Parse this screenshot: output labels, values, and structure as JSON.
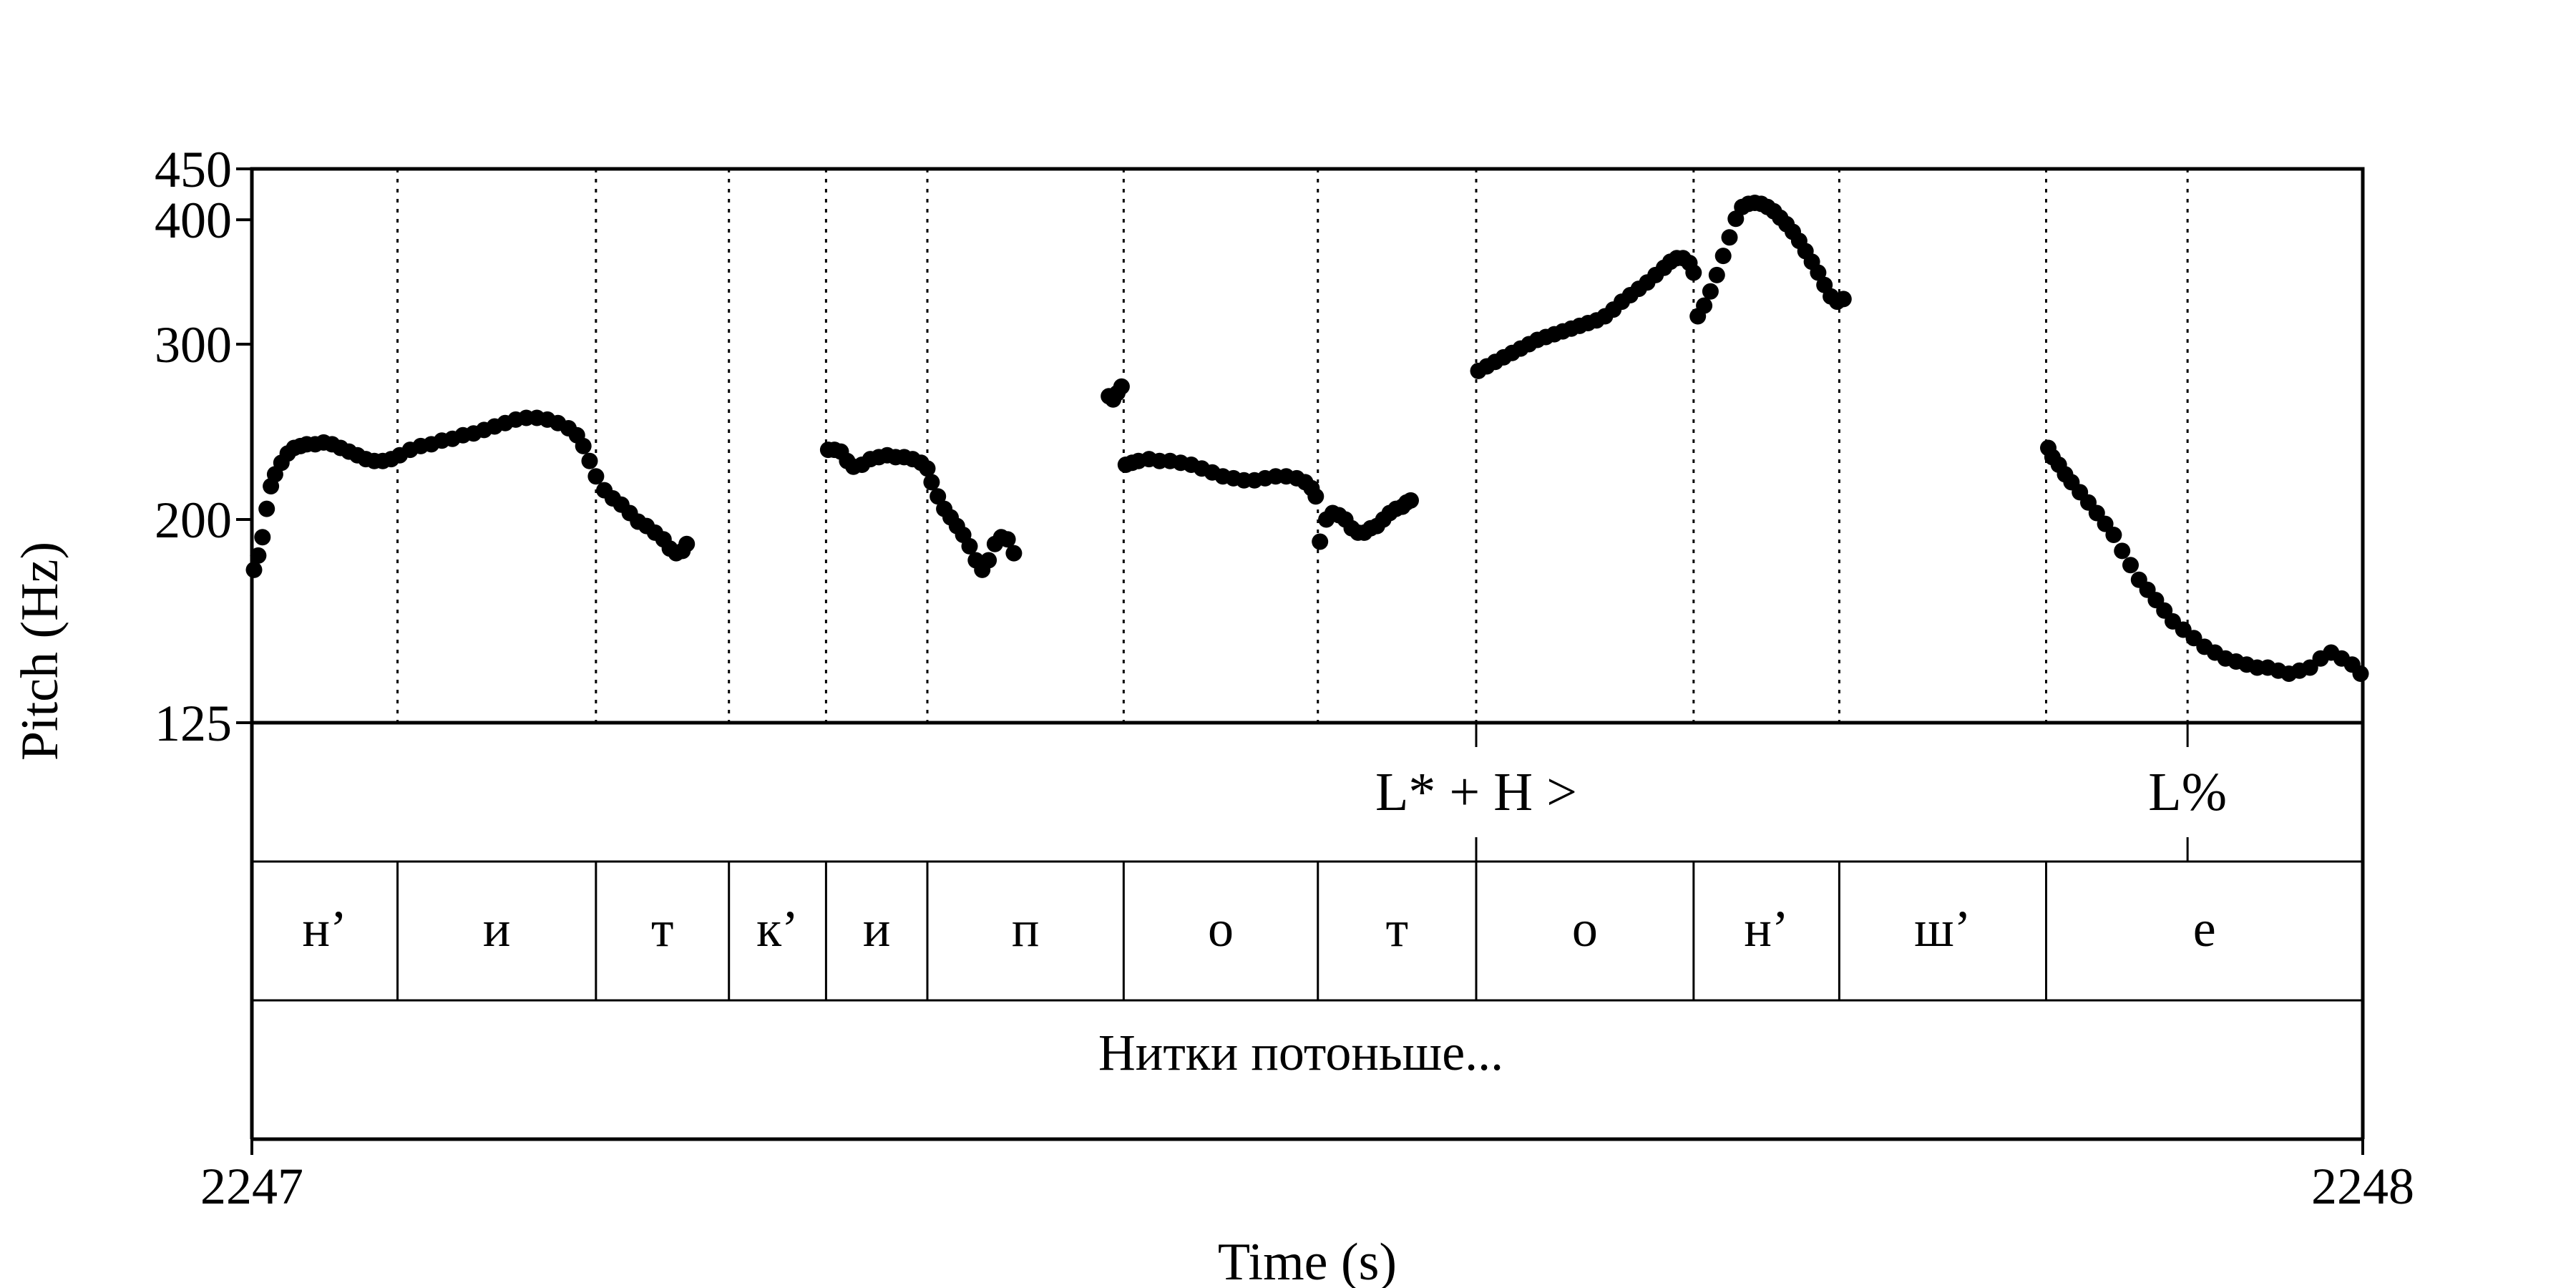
{
  "chart_data": {
    "type": "scatter",
    "title": "",
    "xlabel": "Time (s)",
    "ylabel": "Pitch (Hz)",
    "xlim": [
      2247,
      2248
    ],
    "ylim": [
      125,
      450
    ],
    "x_ticks": [
      "2247",
      "2248"
    ],
    "y_ticks": [
      {
        "value": 125,
        "label": "125"
      },
      {
        "value": 200,
        "label": "200"
      },
      {
        "value": 300,
        "label": "300"
      },
      {
        "value": 400,
        "label": "400"
      },
      {
        "value": 450,
        "label": "450"
      }
    ],
    "segment_boundaries": [
      2247.069,
      2247.163,
      2247.226,
      2247.272,
      2247.32,
      2247.413,
      2247.505,
      2247.58,
      2247.683,
      2247.752,
      2247.85
    ],
    "tone_tier": {
      "marks": [
        {
          "time": 2247.58,
          "label": "L* + H >"
        },
        {
          "time": 2247.917,
          "label": "L%"
        }
      ]
    },
    "segment_tier": {
      "segments": [
        {
          "start": 2247.0,
          "end": 2247.069,
          "label": "н’"
        },
        {
          "start": 2247.069,
          "end": 2247.163,
          "label": "и"
        },
        {
          "start": 2247.163,
          "end": 2247.226,
          "label": "т"
        },
        {
          "start": 2247.226,
          "end": 2247.272,
          "label": "к’"
        },
        {
          "start": 2247.272,
          "end": 2247.32,
          "label": "и"
        },
        {
          "start": 2247.32,
          "end": 2247.413,
          "label": "п"
        },
        {
          "start": 2247.413,
          "end": 2247.505,
          "label": "о"
        },
        {
          "start": 2247.505,
          "end": 2247.58,
          "label": "т"
        },
        {
          "start": 2247.58,
          "end": 2247.683,
          "label": "о"
        },
        {
          "start": 2247.683,
          "end": 2247.752,
          "label": "н’"
        },
        {
          "start": 2247.752,
          "end": 2247.85,
          "label": "ш’"
        },
        {
          "start": 2247.85,
          "end": 2248.0,
          "label": "е"
        }
      ]
    },
    "sentence_tier": {
      "label": "Нитки потоньше..."
    },
    "series": [
      {
        "type": "pitch_track",
        "points": [
          [
            2247.001,
            178
          ],
          [
            2247.003,
            184
          ],
          [
            2247.005,
            192
          ],
          [
            2247.007,
            205
          ],
          [
            2247.009,
            216
          ],
          [
            2247.011,
            222
          ],
          [
            2247.014,
            228
          ],
          [
            2247.017,
            233
          ],
          [
            2247.02,
            236
          ],
          [
            2247.023,
            237
          ],
          [
            2247.026,
            238
          ],
          [
            2247.03,
            238
          ],
          [
            2247.034,
            239
          ],
          [
            2247.038,
            238
          ],
          [
            2247.042,
            236
          ],
          [
            2247.046,
            234
          ],
          [
            2247.05,
            232
          ],
          [
            2247.054,
            230
          ],
          [
            2247.058,
            229
          ],
          [
            2247.062,
            229
          ],
          [
            2247.066,
            230
          ],
          [
            2247.07,
            232
          ],
          [
            2247.075,
            235
          ],
          [
            2247.08,
            237
          ],
          [
            2247.085,
            238
          ],
          [
            2247.09,
            240
          ],
          [
            2247.095,
            241
          ],
          [
            2247.1,
            243
          ],
          [
            2247.105,
            244
          ],
          [
            2247.11,
            246
          ],
          [
            2247.115,
            248
          ],
          [
            2247.12,
            250
          ],
          [
            2247.125,
            252
          ],
          [
            2247.13,
            253
          ],
          [
            2247.135,
            253
          ],
          [
            2247.14,
            252
          ],
          [
            2247.145,
            250
          ],
          [
            2247.15,
            247
          ],
          [
            2247.154,
            243
          ],
          [
            2247.157,
            237
          ],
          [
            2247.16,
            229
          ],
          [
            2247.163,
            221
          ],
          [
            2247.167,
            214
          ],
          [
            2247.171,
            210
          ],
          [
            2247.175,
            207
          ],
          [
            2247.179,
            203
          ],
          [
            2247.183,
            199
          ],
          [
            2247.187,
            197
          ],
          [
            2247.191,
            194
          ],
          [
            2247.195,
            191
          ],
          [
            2247.198,
            187
          ],
          [
            2247.201,
            185
          ],
          [
            2247.204,
            186
          ],
          [
            2247.206,
            189
          ],
          [
            2247.273,
            235
          ],
          [
            2247.276,
            235
          ],
          [
            2247.279,
            234
          ],
          [
            2247.282,
            229
          ],
          [
            2247.285,
            226
          ],
          [
            2247.289,
            227
          ],
          [
            2247.293,
            230
          ],
          [
            2247.297,
            231
          ],
          [
            2247.301,
            232
          ],
          [
            2247.305,
            231
          ],
          [
            2247.309,
            231
          ],
          [
            2247.313,
            230
          ],
          [
            2247.317,
            228
          ],
          [
            2247.32,
            225
          ],
          [
            2247.322,
            218
          ],
          [
            2247.325,
            211
          ],
          [
            2247.328,
            205
          ],
          [
            2247.331,
            201
          ],
          [
            2247.334,
            197
          ],
          [
            2247.337,
            193
          ],
          [
            2247.34,
            188
          ],
          [
            2247.343,
            182
          ],
          [
            2247.346,
            178
          ],
          [
            2247.349,
            182
          ],
          [
            2247.352,
            189
          ],
          [
            2247.355,
            192
          ],
          [
            2247.358,
            191
          ],
          [
            2247.361,
            185
          ],
          [
            2247.406,
            266
          ],
          [
            2247.408,
            264
          ],
          [
            2247.41,
            268
          ],
          [
            2247.412,
            272
          ],
          [
            2247.414,
            227
          ],
          [
            2247.417,
            228
          ],
          [
            2247.42,
            229
          ],
          [
            2247.425,
            230
          ],
          [
            2247.43,
            229
          ],
          [
            2247.435,
            229
          ],
          [
            2247.44,
            228
          ],
          [
            2247.445,
            227
          ],
          [
            2247.45,
            225
          ],
          [
            2247.455,
            223
          ],
          [
            2247.46,
            221
          ],
          [
            2247.465,
            220
          ],
          [
            2247.47,
            219
          ],
          [
            2247.475,
            219
          ],
          [
            2247.48,
            220
          ],
          [
            2247.485,
            221
          ],
          [
            2247.49,
            221
          ],
          [
            2247.495,
            220
          ],
          [
            2247.499,
            218
          ],
          [
            2247.502,
            215
          ],
          [
            2247.504,
            211
          ],
          [
            2247.506,
            190
          ],
          [
            2247.509,
            200
          ],
          [
            2247.512,
            203
          ],
          [
            2247.515,
            202
          ],
          [
            2247.518,
            200
          ],
          [
            2247.521,
            196
          ],
          [
            2247.524,
            194
          ],
          [
            2247.527,
            194
          ],
          [
            2247.53,
            196
          ],
          [
            2247.533,
            197
          ],
          [
            2247.536,
            200
          ],
          [
            2247.539,
            203
          ],
          [
            2247.542,
            205
          ],
          [
            2247.545,
            206
          ],
          [
            2247.547,
            208
          ],
          [
            2247.549,
            209
          ],
          [
            2247.581,
            282
          ],
          [
            2247.585,
            285
          ],
          [
            2247.589,
            288
          ],
          [
            2247.593,
            291
          ],
          [
            2247.597,
            294
          ],
          [
            2247.601,
            297
          ],
          [
            2247.605,
            300
          ],
          [
            2247.609,
            303
          ],
          [
            2247.613,
            305
          ],
          [
            2247.617,
            307
          ],
          [
            2247.621,
            309
          ],
          [
            2247.625,
            311
          ],
          [
            2247.629,
            313
          ],
          [
            2247.633,
            315
          ],
          [
            2247.637,
            317
          ],
          [
            2247.641,
            320
          ],
          [
            2247.645,
            325
          ],
          [
            2247.649,
            331
          ],
          [
            2247.653,
            336
          ],
          [
            2247.657,
            341
          ],
          [
            2247.661,
            346
          ],
          [
            2247.665,
            352
          ],
          [
            2247.669,
            358
          ],
          [
            2247.672,
            363
          ],
          [
            2247.675,
            366
          ],
          [
            2247.678,
            366
          ],
          [
            2247.681,
            362
          ],
          [
            2247.683,
            354
          ],
          [
            2247.685,
            320
          ],
          [
            2247.688,
            328
          ],
          [
            2247.691,
            339
          ],
          [
            2247.694,
            352
          ],
          [
            2247.697,
            368
          ],
          [
            2247.7,
            384
          ],
          [
            2247.703,
            401
          ],
          [
            2247.706,
            412
          ],
          [
            2247.709,
            415
          ],
          [
            2247.712,
            416
          ],
          [
            2247.715,
            415
          ],
          [
            2247.718,
            412
          ],
          [
            2247.721,
            408
          ],
          [
            2247.724,
            402
          ],
          [
            2247.727,
            396
          ],
          [
            2247.73,
            389
          ],
          [
            2247.733,
            381
          ],
          [
            2247.736,
            372
          ],
          [
            2247.739,
            363
          ],
          [
            2247.742,
            354
          ],
          [
            2247.745,
            344
          ],
          [
            2247.748,
            335
          ],
          [
            2247.751,
            331
          ],
          [
            2247.754,
            333
          ],
          [
            2247.851,
            236
          ],
          [
            2247.853,
            231
          ],
          [
            2247.856,
            227
          ],
          [
            2247.859,
            222
          ],
          [
            2247.862,
            218
          ],
          [
            2247.866,
            213
          ],
          [
            2247.87,
            208
          ],
          [
            2247.874,
            203
          ],
          [
            2247.878,
            198
          ],
          [
            2247.882,
            193
          ],
          [
            2247.886,
            186
          ],
          [
            2247.89,
            180
          ],
          [
            2247.894,
            174
          ],
          [
            2247.898,
            170
          ],
          [
            2247.902,
            166
          ],
          [
            2247.906,
            162
          ],
          [
            2247.91,
            158
          ],
          [
            2247.915,
            155
          ],
          [
            2247.92,
            152
          ],
          [
            2247.925,
            149
          ],
          [
            2247.93,
            147
          ],
          [
            2247.935,
            145
          ],
          [
            2247.94,
            144
          ],
          [
            2247.945,
            143
          ],
          [
            2247.95,
            142
          ],
          [
            2247.955,
            142
          ],
          [
            2247.96,
            141
          ],
          [
            2247.965,
            140
          ],
          [
            2247.97,
            141
          ],
          [
            2247.975,
            142
          ],
          [
            2247.98,
            145
          ],
          [
            2247.985,
            147
          ],
          [
            2247.99,
            145
          ],
          [
            2247.995,
            143
          ],
          [
            2247.999,
            140
          ]
        ]
      }
    ]
  }
}
